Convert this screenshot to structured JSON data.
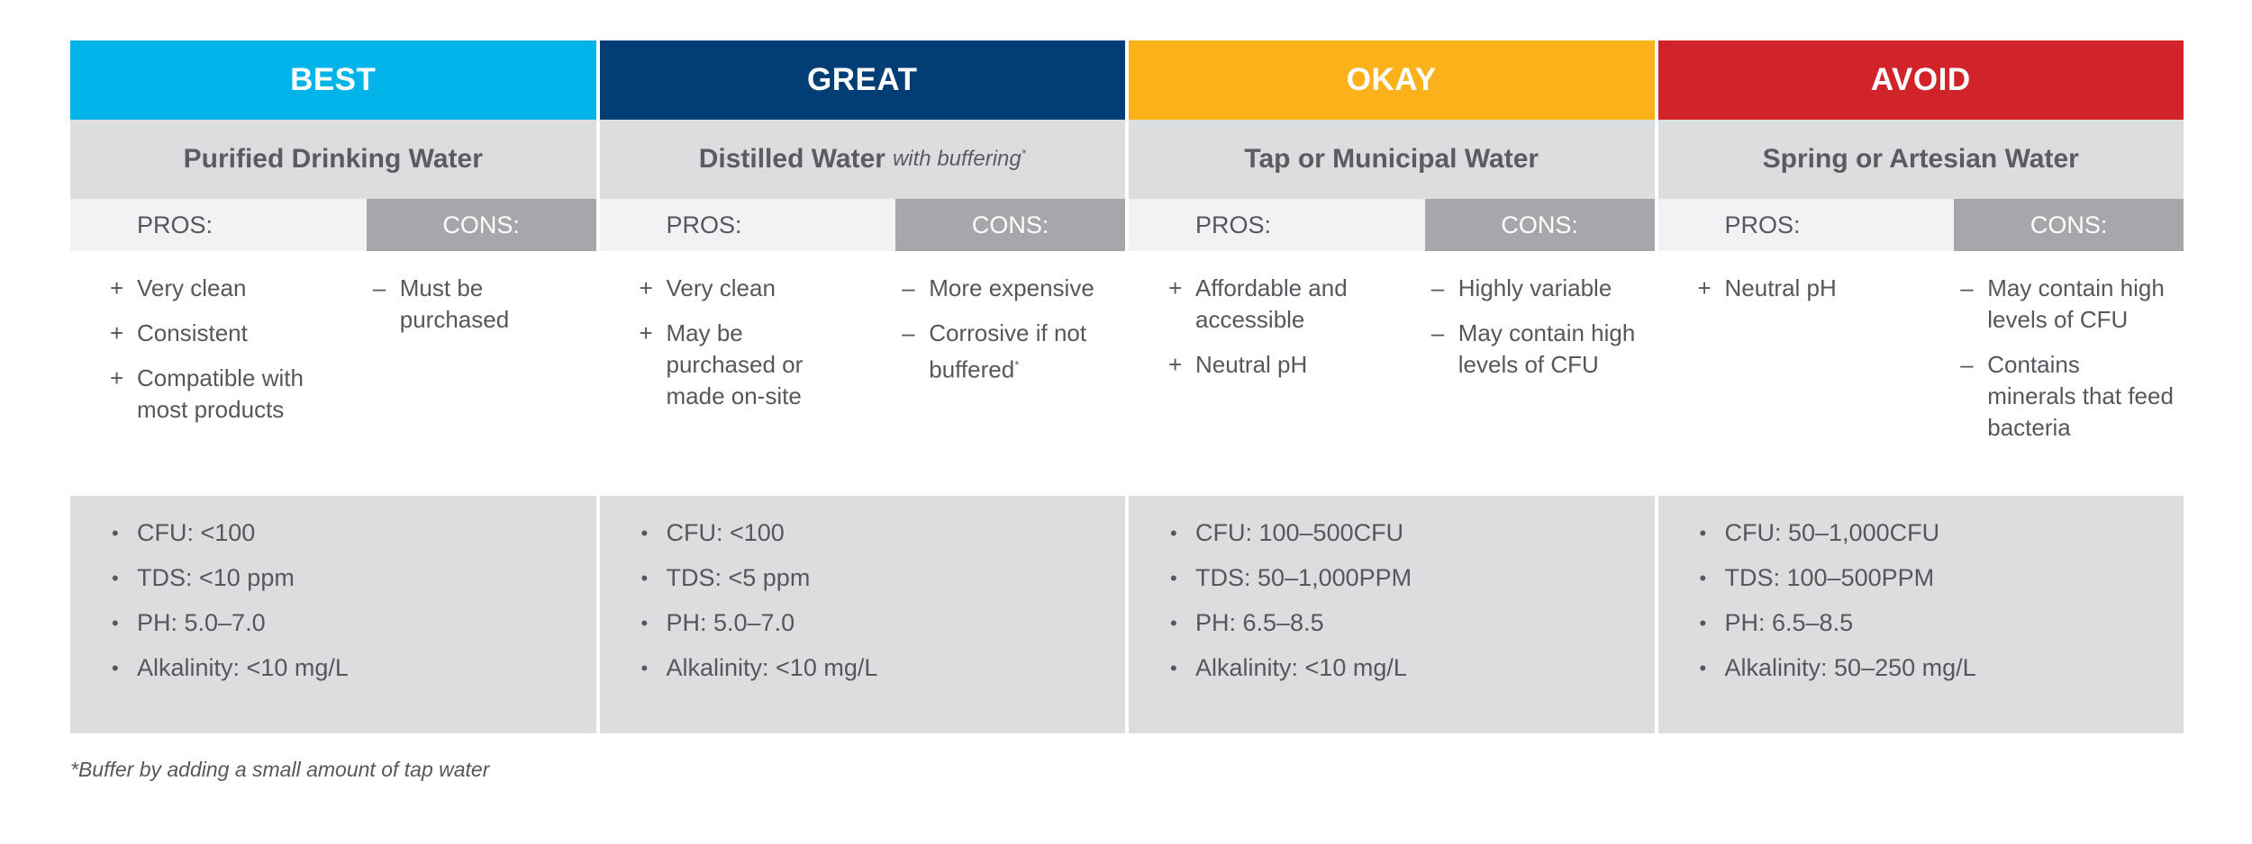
{
  "pros_label": "PROS:",
  "cons_label": "CONS:",
  "columns": [
    {
      "tier": "BEST",
      "color": "#00b4ea",
      "water": "Purified Drinking Water",
      "water_note": "",
      "pros": [
        "Very clean",
        "Consistent",
        "Compatible with most products"
      ],
      "cons": [
        "Must be purchased"
      ],
      "stats": [
        "CFU: <100",
        "TDS: <10 ppm",
        "PH: 5.0–7.0",
        "Alkalinity: <10 mg/L"
      ]
    },
    {
      "tier": "GREAT",
      "color": "#003e75",
      "water": "Distilled Water",
      "water_note": "with buffering",
      "pros": [
        "Very clean",
        "May be purchased or made on-site"
      ],
      "cons": [
        "More expensive",
        "Corrosive if not buffered"
      ],
      "stats": [
        "CFU: <100",
        "TDS: <5 ppm",
        "PH: 5.0–7.0",
        "Alkalinity: <10 mg/L"
      ]
    },
    {
      "tier": "OKAY",
      "color": "#fbb21a",
      "water": "Tap or Municipal Water",
      "water_note": "",
      "pros": [
        "Affordable and accessible",
        "Neutral pH"
      ],
      "cons": [
        "Highly variable",
        "May contain high levels of CFU"
      ],
      "stats": [
        "CFU: 100–500CFU",
        "TDS: 50–1,000PPM",
        "PH: 6.5–8.5",
        "Alkalinity: <10 mg/L"
      ]
    },
    {
      "tier": "AVOID",
      "color": "#d2232a",
      "water": "Spring or Artesian Water",
      "water_note": "",
      "pros": [
        "Neutral pH"
      ],
      "cons": [
        "May contain high levels of CFU",
        "Contains minerals that feed bacteria"
      ],
      "stats": [
        "CFU: 50–1,000CFU",
        "TDS: 100–500PPM",
        "PH: 6.5–8.5",
        "Alkalinity: 50–250 mg/L"
      ]
    }
  ],
  "footnote": "*Buffer by adding a small amount of tap water"
}
